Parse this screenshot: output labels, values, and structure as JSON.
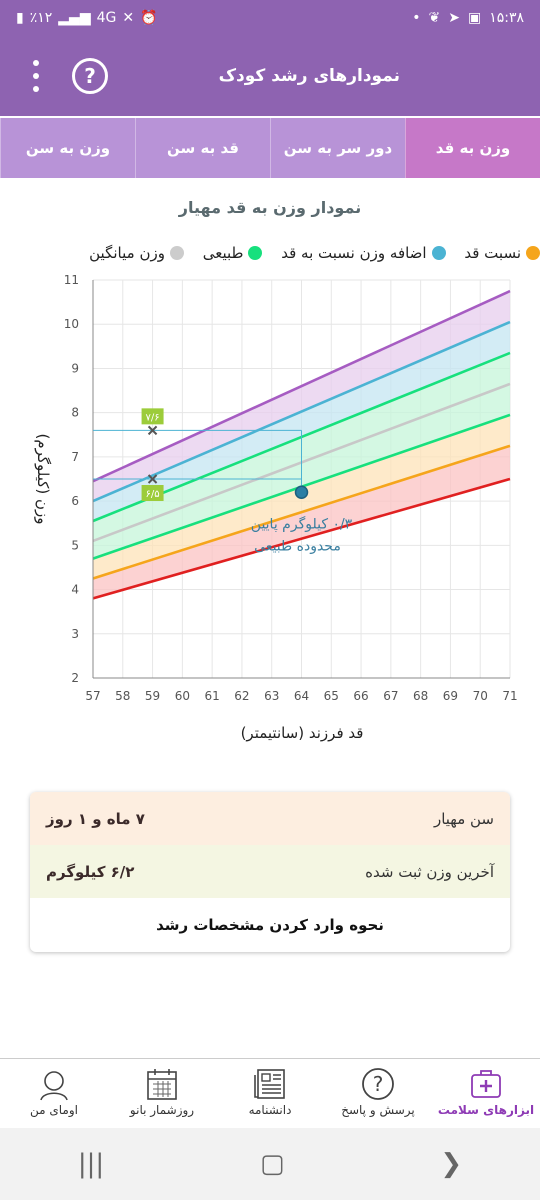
{
  "status_bar": {
    "time": "۱۵:۳۸",
    "battery": "٪۱۲",
    "network": "4G"
  },
  "app_bar": {
    "title": "نمودارهای رشد کودک"
  },
  "tabs": [
    {
      "label": "وزن به سن",
      "active": false
    },
    {
      "label": "قد به سن",
      "active": false
    },
    {
      "label": "دور سر به سن",
      "active": false
    },
    {
      "label": "وزن به قد",
      "active": true
    }
  ],
  "chart_title": "نمودار وزن به قد مهیار",
  "legend": [
    {
      "label": "نسبت قد",
      "color": "#f5a51b"
    },
    {
      "label": "اضافه وزن نسبت به قد",
      "color": "#4bb3d3"
    },
    {
      "label": "طبیعی",
      "color": "#17e07d"
    },
    {
      "label": "وزن میانگین",
      "color": "#cccccc"
    }
  ],
  "chart_data": {
    "type": "line",
    "xlabel": "قد فرزند (سانتیمتر)",
    "ylabel": "وزن (کیلوگرم)",
    "xlim": [
      57,
      71
    ],
    "ylim": [
      2,
      11
    ],
    "x_ticks": [
      57,
      58,
      59,
      60,
      61,
      62,
      63,
      64,
      65,
      66,
      67,
      68,
      69,
      70,
      71
    ],
    "y_ticks": [
      2,
      3,
      4,
      5,
      6,
      7,
      8,
      9,
      10,
      11
    ],
    "series": [
      {
        "color": "#e02020",
        "x": [
          57,
          71
        ],
        "y": [
          3.8,
          6.5
        ]
      },
      {
        "color": "#f5a51b",
        "x": [
          57,
          71
        ],
        "y": [
          4.25,
          7.25
        ]
      },
      {
        "color": "#17e07d",
        "x": [
          57,
          71
        ],
        "y": [
          4.7,
          7.95
        ]
      },
      {
        "color": "#c8c8c8",
        "x": [
          57,
          71
        ],
        "y": [
          5.1,
          8.65
        ]
      },
      {
        "color": "#17e07d",
        "x": [
          57,
          71
        ],
        "y": [
          5.55,
          9.35
        ]
      },
      {
        "color": "#4bb3d3",
        "x": [
          57,
          71
        ],
        "y": [
          6.0,
          10.05
        ]
      },
      {
        "color": "#a65cc2",
        "x": [
          57,
          71
        ],
        "y": [
          6.45,
          10.75
        ]
      }
    ],
    "markers": [
      {
        "x": 59,
        "y": 7.6,
        "label": "۷/۶"
      },
      {
        "x": 59,
        "y": 6.5,
        "label": "۶/۵"
      }
    ],
    "current_point": {
      "x": 64,
      "y": 6.2
    },
    "annotation": {
      "line1": "۰/۳ کیلوگرم پایین",
      "line2": "محدوده طبیعی"
    }
  },
  "info": {
    "age_label": "سن مهیار",
    "age_value": "۷ ماه و ۱ روز",
    "weight_label": "آخرین وزن ثبت شده",
    "weight_value": "۶/۲ کیلوگرم",
    "howto_link": "نحوه وارد کردن مشخصات رشد"
  },
  "bottom_nav": [
    {
      "label": "ابزارهای سلامت",
      "icon": "medical-kit-icon",
      "active": true
    },
    {
      "label": "پرسش و پاسخ",
      "icon": "question-icon",
      "active": false
    },
    {
      "label": "دانشنامه",
      "icon": "newspaper-icon",
      "active": false
    },
    {
      "label": "روزشمار بانو",
      "icon": "calendar-icon",
      "active": false
    },
    {
      "label": "اومای من",
      "icon": "profile-icon",
      "active": false
    }
  ]
}
